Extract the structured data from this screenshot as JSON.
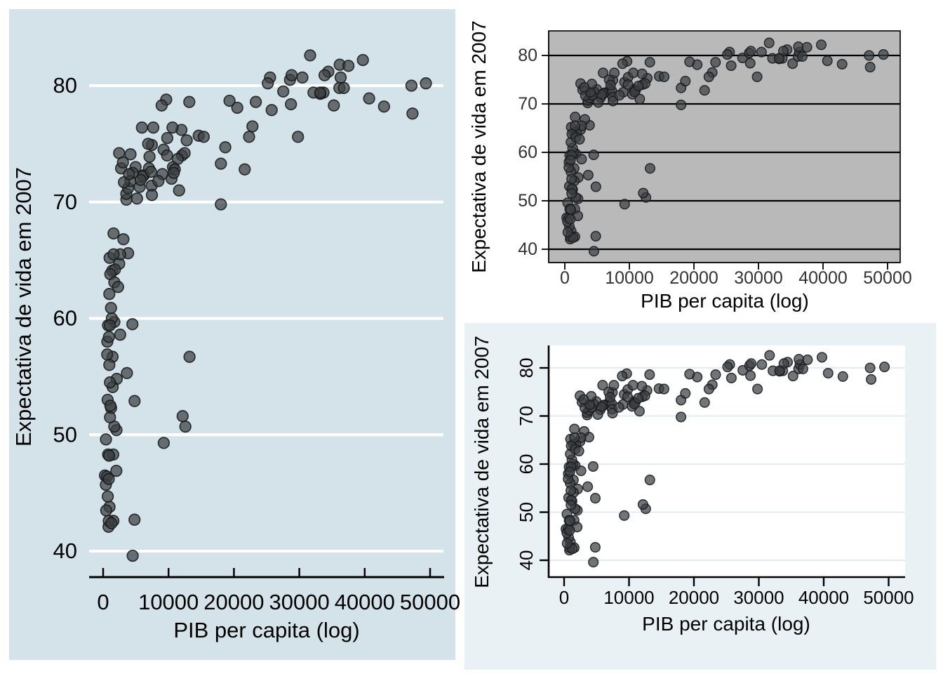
{
  "chart_data": {
    "type": "scatter",
    "title": "",
    "xlabel": "PIB per capita (log)",
    "ylabel": "Expectativa de vida em 2007",
    "x_ticks": [
      0,
      10000,
      20000,
      30000,
      40000,
      50000
    ],
    "x_tick_labels": [
      "0",
      "10000",
      "20000",
      "30000",
      "40000",
      "50000"
    ],
    "y_ticks": [
      40,
      50,
      60,
      70,
      80
    ],
    "y_tick_labels": [
      "40",
      "50",
      "60",
      "70",
      "80"
    ],
    "xlim": [
      -2500,
      52500
    ],
    "ylim": [
      37.5,
      85
    ],
    "grid": "horizontal-only",
    "legend": "none",
    "n_points": 142,
    "points": [
      [
        975,
        43.8
      ],
      [
        5937,
        76.4
      ],
      [
        6223,
        72.3
      ],
      [
        4797,
        42.7
      ],
      [
        12779,
        75.3
      ],
      [
        34435,
        81.2
      ],
      [
        36126,
        79.8
      ],
      [
        29796,
        75.6
      ],
      [
        1391,
        64.1
      ],
      [
        33693,
        79.4
      ],
      [
        1441,
        56.7
      ],
      [
        3822,
        65.6
      ],
      [
        7446,
        74.9
      ],
      [
        12570,
        50.7
      ],
      [
        9066,
        72.4
      ],
      [
        10681,
        73.0
      ],
      [
        1217,
        52.3
      ],
      [
        430,
        49.6
      ],
      [
        1714,
        59.7
      ],
      [
        2042,
        50.4
      ],
      [
        36319,
        80.7
      ],
      [
        706,
        44.7
      ],
      [
        1704,
        50.7
      ],
      [
        13172,
        78.6
      ],
      [
        4959,
        73.0
      ],
      [
        7007,
        72.9
      ],
      [
        986,
        65.2
      ],
      [
        278,
        46.5
      ],
      [
        3633,
        55.3
      ],
      [
        9645,
        78.8
      ],
      [
        1545,
        48.3
      ],
      [
        14619,
        75.7
      ],
      [
        8948,
        78.3
      ],
      [
        22833,
        76.5
      ],
      [
        35278,
        78.3
      ],
      [
        2082,
        54.8
      ],
      [
        6025,
        72.2
      ],
      [
        6873,
        75.0
      ],
      [
        5581,
        71.3
      ],
      [
        5728,
        71.9
      ],
      [
        12154,
        51.6
      ],
      [
        641,
        58.0
      ],
      [
        691,
        53.0
      ],
      [
        33207,
        79.3
      ],
      [
        30470,
        80.7
      ],
      [
        13206,
        56.7
      ],
      [
        753,
        59.4
      ],
      [
        32170,
        79.4
      ],
      [
        1328,
        60.0
      ],
      [
        27538,
        79.5
      ],
      [
        5186,
        70.3
      ],
      [
        942,
        56.0
      ],
      [
        579,
        46.4
      ],
      [
        1202,
        60.9
      ],
      [
        3548,
        70.2
      ],
      [
        39725,
        82.2
      ],
      [
        18009,
        73.3
      ],
      [
        36181,
        81.8
      ],
      [
        2452,
        64.7
      ],
      [
        3541,
        70.7
      ],
      [
        11606,
        71.0
      ],
      [
        4471,
        59.5
      ],
      [
        40676,
        78.9
      ],
      [
        25523,
        80.7
      ],
      [
        28570,
        80.5
      ],
      [
        7321,
        72.6
      ],
      [
        31656,
        82.6
      ],
      [
        4519,
        72.5
      ],
      [
        1463,
        54.1
      ],
      [
        1593,
        67.3
      ],
      [
        23348,
        78.6
      ],
      [
        47307,
        77.6
      ],
      [
        10461,
        72.0
      ],
      [
        1569,
        42.6
      ],
      [
        415,
        45.7
      ],
      [
        12057,
        74.0
      ],
      [
        1045,
        59.4
      ],
      [
        759,
        48.3
      ],
      [
        12452,
        74.2
      ],
      [
        1043,
        54.5
      ],
      [
        1803,
        64.2
      ],
      [
        10957,
        72.8
      ],
      [
        11978,
        76.2
      ],
      [
        3096,
        66.8
      ],
      [
        9254,
        74.5
      ],
      [
        3820,
        71.2
      ],
      [
        824,
        42.1
      ],
      [
        944,
        62.1
      ],
      [
        4811,
        52.9
      ],
      [
        1091,
        63.8
      ],
      [
        36798,
        79.8
      ],
      [
        25185,
        80.2
      ],
      [
        2749,
        72.9
      ],
      [
        620,
        56.9
      ],
      [
        2014,
        46.9
      ],
      [
        49357,
        80.2
      ],
      [
        22316,
        75.6
      ],
      [
        2606,
        65.5
      ],
      [
        9809,
        75.5
      ],
      [
        4173,
        71.8
      ],
      [
        7409,
        71.4
      ],
      [
        3190,
        71.7
      ],
      [
        15390,
        75.6
      ],
      [
        20510,
        78.1
      ],
      [
        19329,
        78.7
      ],
      [
        7670,
        76.4
      ],
      [
        10808,
        72.5
      ],
      [
        863,
        46.2
      ],
      [
        1598,
        65.5
      ],
      [
        21655,
        72.8
      ],
      [
        1712,
        63.1
      ],
      [
        9787,
        74.0
      ],
      [
        863,
        42.6
      ],
      [
        47143,
        80.0
      ],
      [
        18678,
        74.7
      ],
      [
        25768,
        77.9
      ],
      [
        926,
        48.2
      ],
      [
        9270,
        49.3
      ],
      [
        28821,
        80.9
      ],
      [
        3970,
        72.4
      ],
      [
        2602,
        58.6
      ],
      [
        4513,
        39.6
      ],
      [
        33860,
        80.9
      ],
      [
        37506,
        81.7
      ],
      [
        4184,
        74.1
      ],
      [
        28718,
        78.4
      ],
      [
        1107,
        52.5
      ],
      [
        7458,
        70.6
      ],
      [
        883,
        58.4
      ],
      [
        18008,
        69.8
      ],
      [
        7093,
        73.9
      ],
      [
        8458,
        71.8
      ],
      [
        1056,
        51.5
      ],
      [
        33203,
        79.4
      ],
      [
        42952,
        78.2
      ],
      [
        10611,
        76.4
      ],
      [
        11416,
        73.7
      ],
      [
        2442,
        74.2
      ],
      [
        3025,
        73.4
      ],
      [
        2281,
        62.7
      ],
      [
        1271,
        42.4
      ],
      [
        470,
        43.5
      ]
    ],
    "panels": [
      {
        "id": "left-large",
        "theme": "stata-bluish",
        "outer_bg": "#d4e2ea",
        "panel_bg": "#d4e2ea",
        "grid_color": "#ffffff",
        "axis_color": "#000000",
        "tick_text_color": "#000000",
        "title_text_color": "#000000",
        "point_fill": "#3c4043",
        "point_stroke": "#17191a",
        "y_tick_label_rotation": "horizontal"
      },
      {
        "id": "top-right",
        "theme": "gray-panel-black-grid",
        "outer_bg": "#ffffff",
        "panel_bg": "#b9b9b9",
        "grid_color": "#000000",
        "border_color": "#000000",
        "axis_color": "#000000",
        "tick_text_color": "#333333",
        "title_text_color": "#000000",
        "point_fill": "#3c4043",
        "point_stroke": "#17191a",
        "y_tick_label_rotation": "horizontal"
      },
      {
        "id": "bottom-right",
        "theme": "stata-white-panel",
        "outer_bg": "#eaf1f5",
        "panel_bg": "#ffffff",
        "grid_color": "#e2ecf2",
        "axis_color": "#000000",
        "tick_text_color": "#000000",
        "title_text_color": "#000000",
        "point_fill": "#3c4043",
        "point_stroke": "#17191a",
        "y_tick_label_rotation": "rotated-90"
      }
    ]
  }
}
